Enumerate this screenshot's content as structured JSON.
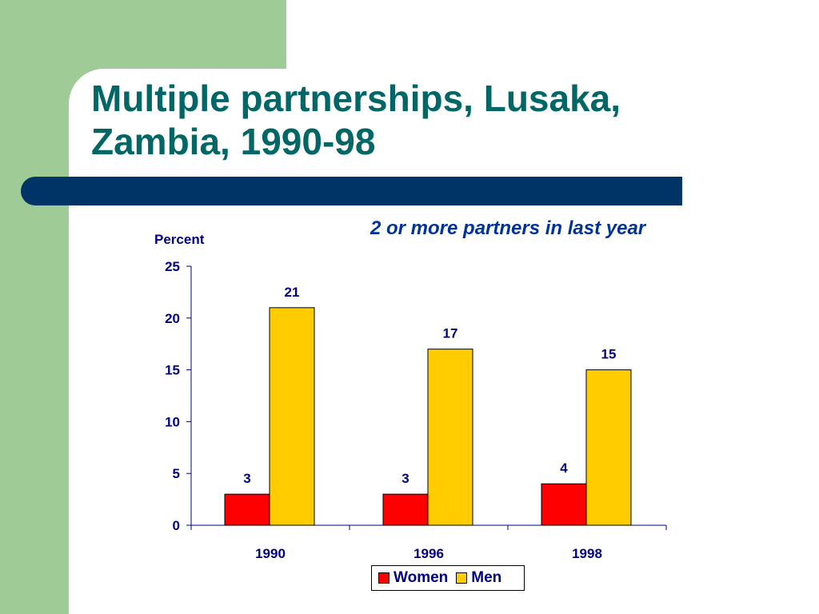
{
  "slide": {
    "title_line1": "Multiple partnerships, Lusaka,",
    "title_line2": "Zambia, 1990-98",
    "subtitle": "2 or more partners in last year"
  },
  "colors": {
    "green_panel": "#9fcc96",
    "title_bar": "#003366",
    "title_text": "#006666",
    "label_text": "#000080"
  },
  "chart_data": {
    "type": "bar",
    "ylabel": "Percent",
    "xlabel": "",
    "categories": [
      "1990",
      "1996",
      "1998"
    ],
    "series": [
      {
        "name": "Women",
        "values": [
          3,
          3,
          4
        ],
        "color": "#ff0000"
      },
      {
        "name": "Men",
        "values": [
          21,
          17,
          15
        ],
        "color": "#ffcc00"
      }
    ],
    "ylim": [
      0,
      25
    ],
    "yticks": [
      0,
      5,
      10,
      15,
      20,
      25
    ],
    "data_labels": true,
    "grid": false,
    "legend": "bottom"
  }
}
